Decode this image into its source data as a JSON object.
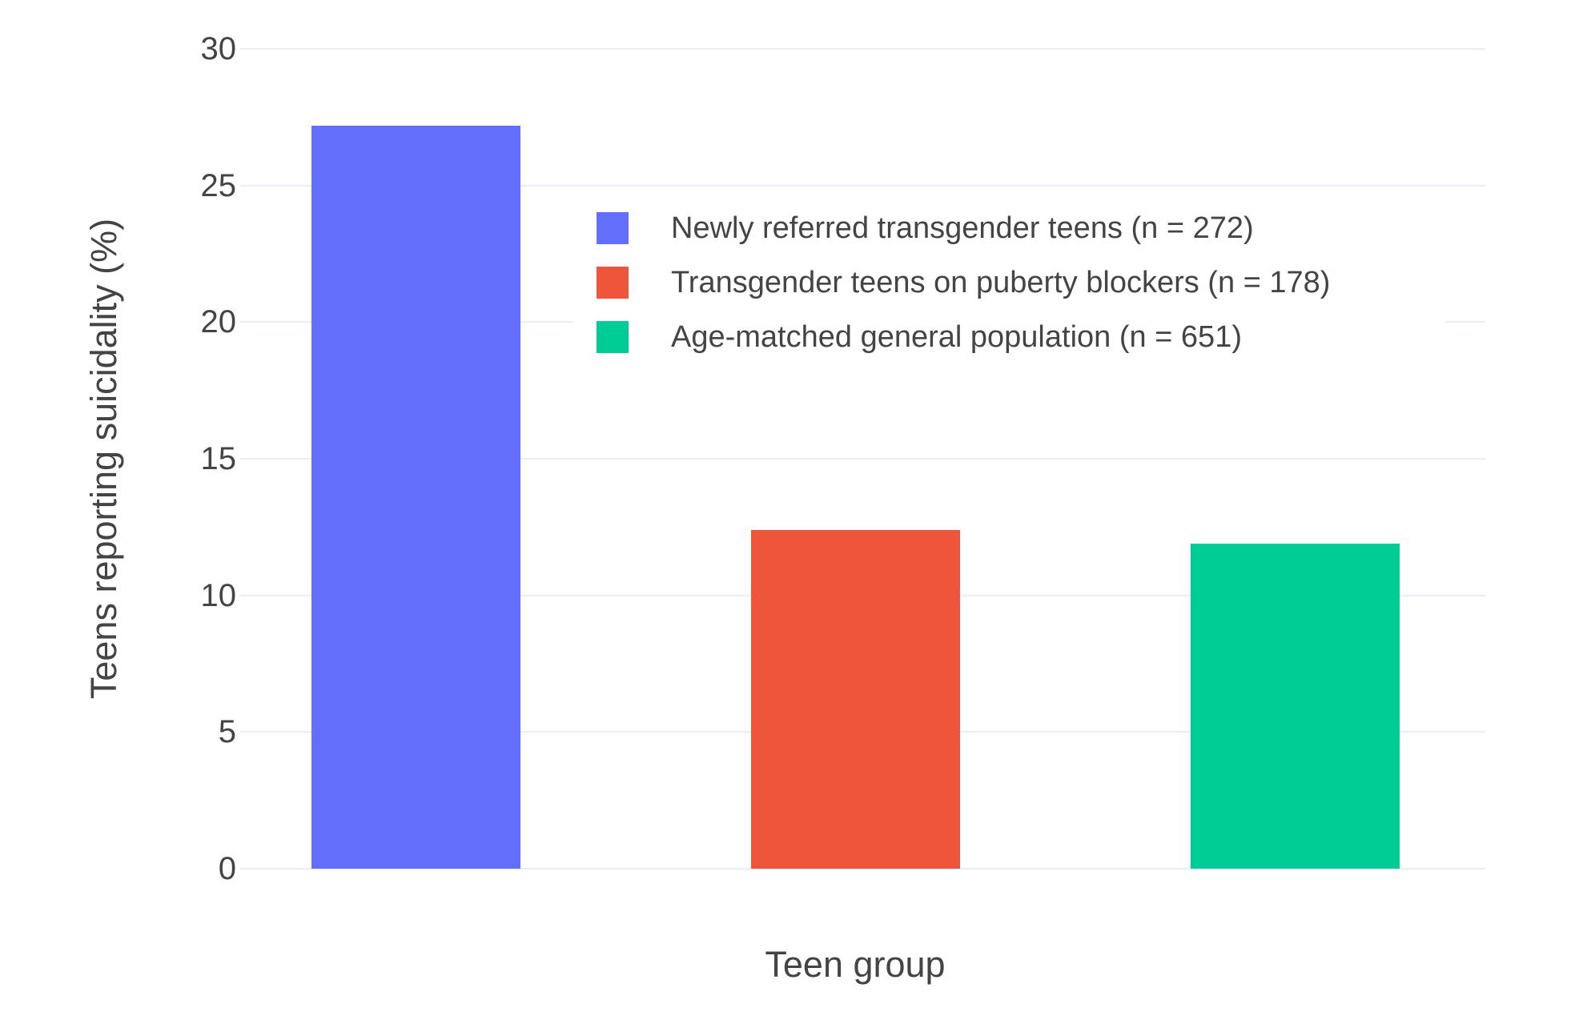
{
  "chart_data": {
    "type": "bar",
    "title": "",
    "xlabel": "Teen group",
    "ylabel": "Teens reporting suicidality (%)",
    "ylim": [
      0,
      30
    ],
    "yticks": [
      0,
      5,
      10,
      15,
      20,
      25,
      30
    ],
    "grid": true,
    "legend_position": "inside top, white background, no border",
    "series": [
      {
        "name": "Newly referred transgender teens (n = 272)",
        "value": 27.2,
        "color": "#636EFA"
      },
      {
        "name": "Transgender teens on puberty blockers (n = 178)",
        "value": 12.4,
        "color": "#EF553B"
      },
      {
        "name": "Age-matched general population (n = 651)",
        "value": 11.9,
        "color": "#00CC96"
      }
    ]
  },
  "colors": {
    "background": "#FFFFFF",
    "gridline": "#E8EDF6",
    "text": "#444444"
  }
}
